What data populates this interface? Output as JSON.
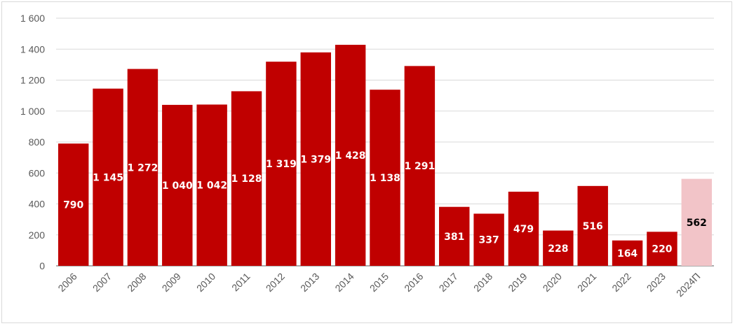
{
  "chart_data": {
    "type": "bar",
    "title": "",
    "xlabel": "",
    "ylabel": "",
    "ylim": [
      0,
      1600
    ],
    "yticks": [
      0,
      200,
      400,
      600,
      800,
      1000,
      1200,
      1400,
      1600
    ],
    "ytick_labels": [
      "0",
      "200",
      "400",
      "600",
      "800",
      "1 000",
      "1 200",
      "1 400",
      "1 600"
    ],
    "grid": true,
    "categories": [
      "2006",
      "2007",
      "2008",
      "2009",
      "2010",
      "2011",
      "2012",
      "2013",
      "2014",
      "2015",
      "2016",
      "2017",
      "2018",
      "2019",
      "2020",
      "2021",
      "2022",
      "2023",
      "2024П"
    ],
    "values": [
      790,
      1145,
      1272,
      1040,
      1042,
      1128,
      1319,
      1379,
      1428,
      1138,
      1291,
      381,
      337,
      479,
      228,
      516,
      164,
      220,
      562
    ],
    "value_labels": [
      "790",
      "1 145",
      "1 272",
      "1 040",
      "1 042",
      "1 128",
      "1 319",
      "1 379",
      "1 428",
      "1 138",
      "1 291",
      "381",
      "337",
      "479",
      "228",
      "516",
      "164",
      "220",
      "562"
    ],
    "colors": {
      "bar": "#c00000",
      "forecast_bar": "#f2c4c8",
      "label": "#ffffff",
      "forecast_label": "#000000",
      "grid": "#d9d9d9",
      "axis": "#595959"
    },
    "forecast_index": 18
  }
}
